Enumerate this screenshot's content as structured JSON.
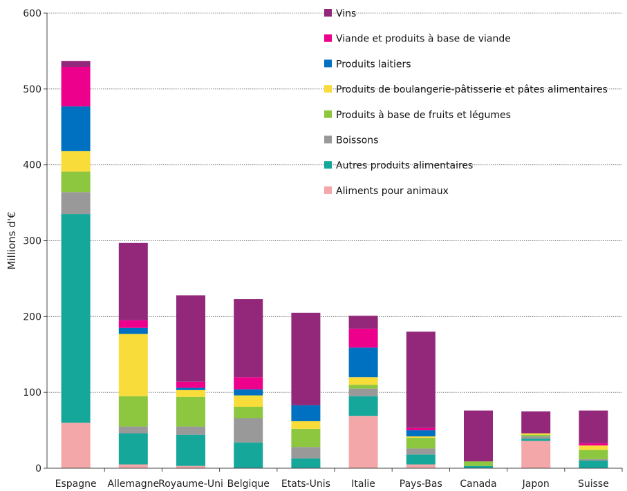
{
  "chart_data": {
    "type": "bar",
    "stacked": true,
    "title": "",
    "xlabel": "",
    "ylabel": "Millions d'€",
    "ylim": [
      0,
      600
    ],
    "yticks": [
      0,
      100,
      200,
      300,
      400,
      500,
      600
    ],
    "grid": "horizontal dotted",
    "legend_position": "top-right",
    "categories": [
      "Espagne",
      "Allemagne",
      "Royaume-Uni",
      "Belgique",
      "Etats-Unis",
      "Italie",
      "Pays-Bas",
      "Canada",
      "Japon",
      "Suisse"
    ],
    "series": [
      {
        "name": "Aliments pour animaux",
        "color": "#f4a7a9",
        "values": [
          60,
          5,
          3,
          0,
          0,
          69,
          5,
          0,
          36,
          0
        ]
      },
      {
        "name": "Autres produits alimentaires",
        "color": "#15a89a",
        "values": [
          275,
          41,
          41,
          34,
          13,
          26,
          13,
          3,
          3,
          10
        ]
      },
      {
        "name": "Boissons",
        "color": "#999999",
        "values": [
          29,
          9,
          11,
          32,
          15,
          10,
          8,
          0,
          3,
          2
        ]
      },
      {
        "name": "Produits à base de fruits et légumes",
        "color": "#8dc63f",
        "values": [
          27,
          40,
          39,
          15,
          24,
          5,
          14,
          6,
          2,
          12
        ]
      },
      {
        "name": "Produits de boulangerie-pâtisserie et pâtes alimentaires",
        "color": "#f7dc3a",
        "values": [
          27,
          82,
          9,
          15,
          10,
          10,
          2,
          0,
          2,
          6
        ]
      },
      {
        "name": "Produits laitiers",
        "color": "#0070c0",
        "values": [
          59,
          8,
          3,
          8,
          21,
          39,
          8,
          0,
          0,
          0
        ]
      },
      {
        "name": "Viande et produits à base de viande",
        "color": "#ec008c",
        "values": [
          52,
          10,
          8,
          16,
          0,
          25,
          3,
          0,
          0,
          3
        ]
      },
      {
        "name": "Vins",
        "color": "#93287b",
        "values": [
          8,
          102,
          114,
          103,
          122,
          17,
          127,
          67,
          29,
          43
        ]
      }
    ],
    "legend_order": [
      "Vins",
      "Viande et produits à base de viande",
      "Produits laitiers",
      "Produits de boulangerie-pâtisserie et pâtes alimentaires",
      "Produits à base de fruits et légumes",
      "Boissons",
      "Autres produits alimentaires",
      "Aliments pour animaux"
    ]
  }
}
